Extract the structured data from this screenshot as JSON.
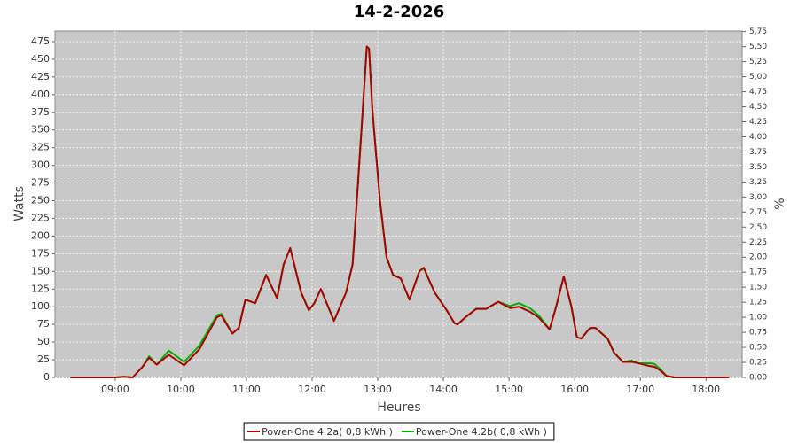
{
  "chart_data": {
    "type": "line",
    "title": "14-2-2026",
    "x_label": "Heures",
    "y_label": "Watts",
    "y2_label": "%",
    "x": [
      499,
      540,
      548,
      556,
      565,
      571,
      578,
      589,
      603,
      617,
      633,
      637,
      647,
      653,
      659,
      668,
      678,
      688,
      694,
      700,
      710,
      717,
      722,
      728,
      740,
      751,
      757,
      763,
      770,
      772,
      775,
      782,
      788,
      794,
      801,
      809,
      818,
      822,
      832,
      843,
      850,
      853,
      860,
      870,
      879,
      890,
      901,
      909,
      919,
      927,
      937,
      943,
      950,
      957,
      962,
      966,
      974,
      979,
      990,
      996,
      1004,
      1012,
      1018,
      1029,
      1033,
      1038,
      1044,
      1051,
      1101
    ],
    "series": [
      {
        "name": "Power-One 4.2a( 0,8 kWh )",
        "color": "#aa0000",
        "values": [
          0,
          0,
          1,
          0,
          15,
          28,
          18,
          32,
          17,
          40,
          85,
          88,
          62,
          70,
          110,
          105,
          145,
          112,
          160,
          183,
          120,
          95,
          105,
          125,
          80,
          120,
          160,
          300,
          468,
          465,
          380,
          250,
          170,
          145,
          140,
          110,
          150,
          155,
          120,
          95,
          77,
          75,
          85,
          97,
          97,
          107,
          98,
          100,
          93,
          85,
          68,
          100,
          143,
          100,
          57,
          55,
          70,
          70,
          55,
          35,
          22,
          22,
          20,
          16,
          15,
          10,
          2,
          0,
          0
        ]
      },
      {
        "name": "Power-One 4.2b( 0,8 kWh )",
        "color": "#00b000",
        "values": [
          0,
          0,
          1,
          0,
          15,
          30,
          18,
          38,
          22,
          45,
          88,
          90,
          62,
          70,
          110,
          105,
          145,
          112,
          160,
          183,
          120,
          95,
          105,
          125,
          80,
          120,
          160,
          300,
          468,
          465,
          380,
          250,
          170,
          145,
          140,
          110,
          150,
          155,
          120,
          95,
          77,
          75,
          85,
          97,
          97,
          107,
          101,
          105,
          98,
          88,
          68,
          100,
          143,
          100,
          57,
          55,
          70,
          70,
          55,
          35,
          22,
          24,
          20,
          20,
          19,
          12,
          2,
          0,
          0
        ]
      }
    ],
    "xlim": [
      485,
      1113
    ],
    "xticks": [
      {
        "value": 540,
        "label": "09:00"
      },
      {
        "value": 600,
        "label": "10:00"
      },
      {
        "value": 660,
        "label": "11:00"
      },
      {
        "value": 720,
        "label": "12:00"
      },
      {
        "value": 780,
        "label": "13:00"
      },
      {
        "value": 840,
        "label": "14:00"
      },
      {
        "value": 900,
        "label": "15:00"
      },
      {
        "value": 960,
        "label": "16:00"
      },
      {
        "value": 1020,
        "label": "17:00"
      },
      {
        "value": 1080,
        "label": "18:00"
      }
    ],
    "ylim": [
      0,
      490
    ],
    "yticks": [
      0,
      25,
      50,
      75,
      100,
      125,
      150,
      175,
      200,
      225,
      250,
      275,
      300,
      325,
      350,
      375,
      400,
      425,
      450,
      475
    ],
    "y2lim": [
      0,
      5.76
    ],
    "y2ticks": [
      {
        "value": 0,
        "label": "0,00"
      },
      {
        "value": 0.25,
        "label": "0,25"
      },
      {
        "value": 0.5,
        "label": "0,50"
      },
      {
        "value": 0.75,
        "label": "0,75"
      },
      {
        "value": 1,
        "label": "1,00"
      },
      {
        "value": 1.25,
        "label": "1,25"
      },
      {
        "value": 1.5,
        "label": "1,50"
      },
      {
        "value": 1.75,
        "label": "1,75"
      },
      {
        "value": 2,
        "label": "2,00"
      },
      {
        "value": 2.25,
        "label": "2,25"
      },
      {
        "value": 2.5,
        "label": "2,50"
      },
      {
        "value": 2.75,
        "label": "2,75"
      },
      {
        "value": 3,
        "label": "3,00"
      },
      {
        "value": 3.25,
        "label": "3,25"
      },
      {
        "value": 3.5,
        "label": "3,50"
      },
      {
        "value": 3.75,
        "label": "3,75"
      },
      {
        "value": 4,
        "label": "4,00"
      },
      {
        "value": 4.25,
        "label": "4,25"
      },
      {
        "value": 4.5,
        "label": "4,50"
      },
      {
        "value": 4.75,
        "label": "4,75"
      },
      {
        "value": 5,
        "label": "5,00"
      },
      {
        "value": 5.25,
        "label": "5,25"
      },
      {
        "value": 5.5,
        "label": "5,50"
      },
      {
        "value": 5.75,
        "label": "5,75"
      }
    ],
    "grid": true,
    "plot_background": "#c8c8c8",
    "legend": "bottom"
  }
}
